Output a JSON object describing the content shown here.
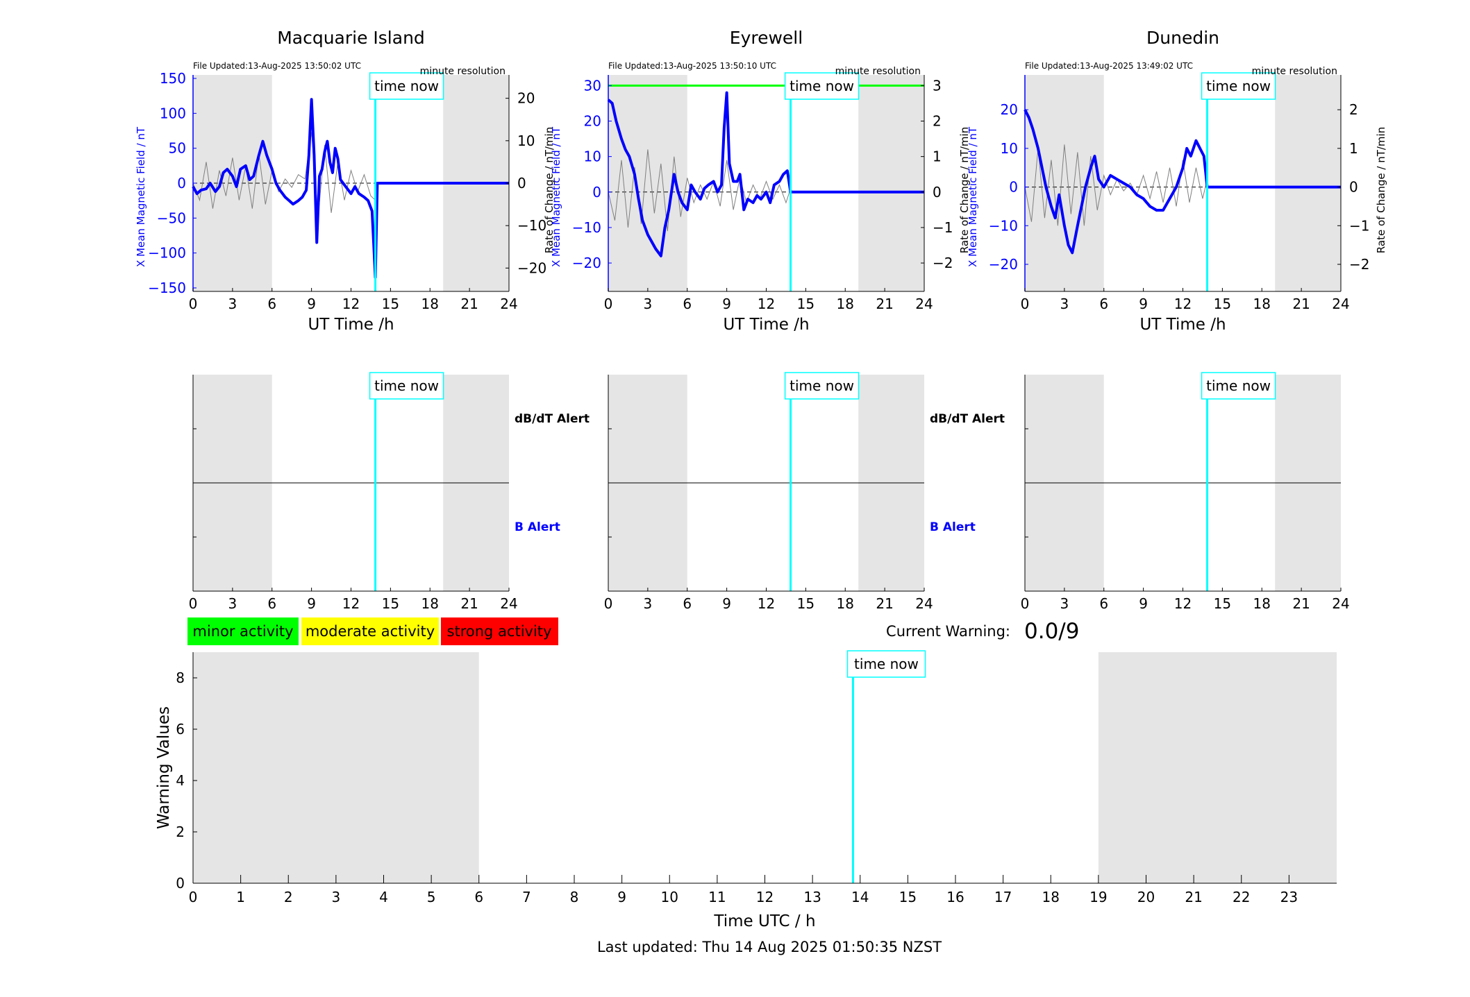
{
  "stations": [
    {
      "name": "Macquarie Island",
      "file_updated": "File Updated:13-Aug-2025 13:50:02 UTC",
      "resolution": "minute resolution",
      "ylabel_left": "X Mean Magnetic Field / nT",
      "ylabel_right": "Rate of Change / nT/min",
      "xlabel": "UT Time /h",
      "yleft_ticks": [
        150,
        100,
        50,
        0,
        -50,
        -100,
        -150
      ],
      "yright_ticks": [
        20,
        10,
        0,
        -10,
        -20
      ],
      "x_ticks": [
        0,
        3,
        6,
        9,
        12,
        15,
        18,
        21,
        24
      ],
      "time_now_label": "time now",
      "alert_db": "dB/dT Alert",
      "alert_b": "B Alert",
      "alert_x_ticks": [
        0,
        3,
        6,
        9,
        12,
        15,
        18,
        21,
        24
      ]
    },
    {
      "name": "Eyrewell",
      "file_updated": "File Updated:13-Aug-2025 13:50:10 UTC",
      "resolution": "minute resolution",
      "ylabel_left": "X Mean Magnetic Field / nT",
      "ylabel_right": "Rate of Change / nT/min",
      "xlabel": "UT Time /h",
      "yleft_ticks": [
        30,
        20,
        10,
        0,
        -10,
        -20
      ],
      "yright_ticks": [
        3,
        2,
        1,
        0,
        -1,
        -2
      ],
      "x_ticks": [
        0,
        3,
        6,
        9,
        12,
        15,
        18,
        21,
        24
      ],
      "time_now_label": "time now",
      "alert_db": "dB/dT Alert",
      "alert_b": "B Alert",
      "alert_x_ticks": [
        0,
        3,
        6,
        9,
        12,
        15,
        18,
        21,
        24
      ]
    },
    {
      "name": "Dunedin",
      "file_updated": "File Updated:13-Aug-2025 13:49:02 UTC",
      "resolution": "minute resolution",
      "ylabel_left": "X Mean Magnetic Field / nT",
      "ylabel_right": "Rate of Change / nT/min",
      "xlabel": "UT Time /h",
      "yleft_ticks": [
        20,
        10,
        0,
        -10,
        -20
      ],
      "yright_ticks": [
        2,
        1,
        0,
        -1,
        -2
      ],
      "x_ticks": [
        0,
        3,
        6,
        9,
        12,
        15,
        18,
        21,
        24
      ],
      "time_now_label": "time now",
      "alert_db": "",
      "alert_b": "",
      "alert_x_ticks": [
        0,
        3,
        6,
        9,
        12,
        15,
        18,
        21,
        24
      ]
    }
  ],
  "legend": {
    "minor": "minor activity",
    "moderate": "moderate activity",
    "strong": "strong activity"
  },
  "current_warning_label": "Current Warning:",
  "current_warning_value": "0.0/9",
  "warning_chart": {
    "ylabel": "Warning Values",
    "xlabel": "Time UTC / h",
    "y_ticks": [
      0,
      2,
      4,
      6,
      8
    ],
    "x_ticks": [
      0,
      1,
      2,
      3,
      4,
      5,
      6,
      7,
      8,
      9,
      10,
      11,
      12,
      13,
      14,
      15,
      16,
      17,
      18,
      19,
      20,
      21,
      22,
      23
    ],
    "time_now_label": "time now"
  },
  "last_updated": "Last updated: Thu 14 Aug 2025 01:50:35 NZST",
  "colors": {
    "field": "#0000ff",
    "rate": "#7f7f7f",
    "now": "#00ffff",
    "shade": "#e5e5e5",
    "green": "#00ff00",
    "yellow": "#ffff00",
    "red": "#ff0000"
  },
  "chart_data": [
    {
      "type": "line",
      "station": "Macquarie Island",
      "xlim": [
        0,
        24
      ],
      "ylim_left": [
        -155,
        155
      ],
      "ylim_right": [
        -25.5,
        25.5
      ],
      "now_hour": 13.85,
      "night_shading": [
        [
          0,
          6
        ],
        [
          19,
          24
        ]
      ],
      "series": [
        {
          "name": "",
          "axis": "left",
          "x": [
            0,
            0.3,
            0.6,
            1,
            1.3,
            1.7,
            2,
            2.3,
            2.6,
            3,
            3.3,
            3.6,
            4,
            4.3,
            4.6,
            5,
            5.3,
            5.6,
            6,
            6.3,
            6.6,
            7,
            7.3,
            7.6,
            8,
            8.3,
            8.6,
            8.8,
            9,
            9.2,
            9.4,
            9.6,
            9.8,
            10,
            10.2,
            10.4,
            10.6,
            10.8,
            11,
            11.2,
            11.4,
            11.6,
            11.8,
            12,
            12.3,
            12.6,
            13,
            13.3,
            13.6,
            13.85,
            14,
            24
          ],
          "y": [
            -5,
            -15,
            -10,
            -8,
            0,
            -12,
            -5,
            15,
            20,
            10,
            -5,
            20,
            25,
            5,
            10,
            40,
            60,
            40,
            20,
            0,
            -10,
            -20,
            -25,
            -30,
            -25,
            -20,
            -10,
            40,
            120,
            40,
            -85,
            10,
            20,
            45,
            60,
            30,
            15,
            50,
            35,
            5,
            0,
            -5,
            -10,
            -15,
            -5,
            -15,
            -20,
            -25,
            -40,
            -135,
            0,
            0
          ]
        },
        {
          "name": "",
          "axis": "right",
          "x": [
            0,
            0.5,
            1,
            1.5,
            2,
            2.5,
            3,
            3.5,
            4,
            4.5,
            5,
            5.5,
            6,
            6.5,
            7,
            7.5,
            8,
            8.5,
            9,
            9.5,
            10,
            10.5,
            11,
            11.5,
            12,
            12.5,
            13,
            13.5,
            13.85
          ],
          "y": [
            0,
            -4,
            5,
            -6,
            3,
            -3,
            6,
            -4,
            4,
            -6,
            7,
            -5,
            3,
            -2,
            1,
            -1,
            2,
            1,
            12,
            -8,
            9,
            -7,
            5,
            -4,
            3,
            -2,
            2,
            -3,
            -4
          ]
        }
      ]
    },
    {
      "type": "line",
      "station": "Eyrewell",
      "xlim": [
        0,
        24
      ],
      "ylim_left": [
        -28,
        33
      ],
      "ylim_right": [
        -2.8,
        3.3
      ],
      "now_hour": 13.85,
      "night_shading": [
        [
          0,
          6
        ],
        [
          19,
          24
        ]
      ],
      "threshold_line_y": 30,
      "series": [
        {
          "name": "",
          "axis": "left",
          "x": [
            0,
            0.3,
            0.6,
            1,
            1.3,
            1.6,
            2,
            2.3,
            2.6,
            3,
            3.3,
            3.6,
            4,
            4.3,
            4.6,
            5,
            5.3,
            5.6,
            6,
            6.3,
            6.6,
            7,
            7.3,
            7.6,
            8,
            8.3,
            8.6,
            8.8,
            9,
            9.2,
            9.5,
            9.8,
            10,
            10.3,
            10.6,
            11,
            11.3,
            11.6,
            12,
            12.3,
            12.6,
            13,
            13.3,
            13.6,
            13.85,
            14,
            24
          ],
          "y": [
            26,
            25,
            20,
            15,
            12,
            10,
            5,
            -2,
            -8,
            -12,
            -14,
            -16,
            -18,
            -10,
            -5,
            5,
            0,
            -3,
            -5,
            2,
            0,
            -2,
            1,
            2,
            3,
            0,
            2,
            18,
            28,
            8,
            3,
            3,
            5,
            -5,
            -2,
            -3,
            -1,
            -2,
            0,
            -3,
            2,
            3,
            5,
            6,
            0,
            0,
            0
          ]
        },
        {
          "name": "",
          "axis": "right",
          "x": [
            0,
            0.5,
            1,
            1.5,
            2,
            2.5,
            3,
            3.5,
            4,
            4.5,
            5,
            5.5,
            6,
            6.5,
            7,
            7.5,
            8,
            8.5,
            9,
            9.5,
            10,
            10.5,
            11,
            11.5,
            12,
            12.5,
            13,
            13.5,
            13.85
          ],
          "y": [
            0,
            -0.8,
            0.9,
            -1,
            0.7,
            -0.9,
            1.2,
            -0.6,
            0.8,
            -1.1,
            1,
            -0.7,
            0.4,
            -0.3,
            0.2,
            -0.2,
            0.3,
            -0.4,
            0.9,
            -0.5,
            0.4,
            -0.3,
            0.2,
            -0.2,
            0.3,
            -0.2,
            0.2,
            -0.3,
            0.1
          ]
        }
      ]
    },
    {
      "type": "line",
      "station": "Dunedin",
      "xlim": [
        0,
        24
      ],
      "ylim_left": [
        -27,
        29
      ],
      "ylim_right": [
        -2.7,
        2.9
      ],
      "now_hour": 13.85,
      "night_shading": [
        [
          0,
          6
        ],
        [
          19,
          24
        ]
      ],
      "series": [
        {
          "name": "",
          "axis": "left",
          "x": [
            0,
            0.3,
            0.6,
            1,
            1.3,
            1.6,
            2,
            2.3,
            2.6,
            3,
            3.3,
            3.6,
            4,
            4.3,
            4.6,
            5,
            5.3,
            5.6,
            6,
            6.5,
            7,
            7.5,
            8,
            8.5,
            9,
            9.5,
            10,
            10.5,
            11,
            11.5,
            12,
            12.3,
            12.6,
            13,
            13.3,
            13.6,
            13.85,
            14,
            24
          ],
          "y": [
            20,
            18,
            15,
            10,
            5,
            0,
            -5,
            -8,
            -2,
            -10,
            -15,
            -17,
            -10,
            -5,
            0,
            5,
            8,
            2,
            0,
            3,
            2,
            1,
            0,
            -2,
            -3,
            -5,
            -6,
            -6,
            -3,
            0,
            5,
            10,
            8,
            12,
            10,
            8,
            0,
            0,
            0
          ]
        },
        {
          "name": "",
          "axis": "right",
          "x": [
            0,
            0.5,
            1,
            1.5,
            2,
            2.5,
            3,
            3.5,
            4,
            4.5,
            5,
            5.5,
            6,
            6.5,
            7,
            7.5,
            8,
            8.5,
            9,
            9.5,
            10,
            10.5,
            11,
            11.5,
            12,
            12.5,
            13,
            13.5,
            13.85
          ],
          "y": [
            0,
            -0.9,
            1,
            -0.8,
            0.7,
            -1,
            1.1,
            -0.7,
            0.9,
            -1,
            0.8,
            -0.6,
            0.3,
            -0.2,
            0.2,
            -0.1,
            0.1,
            -0.2,
            0.3,
            -0.3,
            0.4,
            -0.4,
            0.5,
            -0.5,
            0.7,
            -0.4,
            0.5,
            -0.3,
            0.2
          ]
        }
      ]
    },
    {
      "type": "bar",
      "title": "",
      "xlim": [
        0,
        24
      ],
      "ylim": [
        0,
        9
      ],
      "now_hour": 13.85,
      "night_shading": [
        [
          0,
          6
        ],
        [
          19,
          24
        ]
      ],
      "categories": [
        0,
        1,
        2,
        3,
        4,
        5,
        6,
        7,
        8,
        9,
        10,
        11,
        12,
        13,
        14,
        15,
        16,
        17,
        18,
        19,
        20,
        21,
        22,
        23
      ],
      "values": [
        0,
        0,
        0,
        0,
        0,
        0,
        0,
        0,
        0,
        0,
        0,
        0,
        0,
        0,
        0,
        0,
        0,
        0,
        0,
        0,
        0,
        0,
        0,
        0
      ]
    }
  ]
}
